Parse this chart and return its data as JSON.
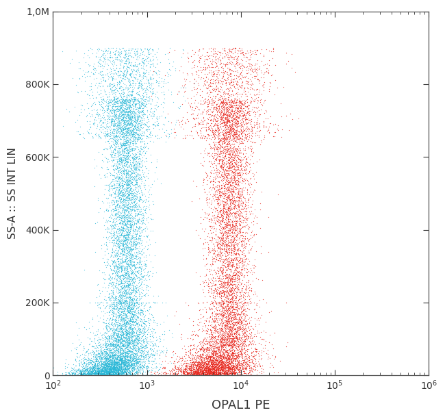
{
  "xlabel": "OPAL1 PE",
  "ylabel": "SS-A :: SS INT LIN",
  "xlim_log": [
    100,
    1000000
  ],
  "ylim": [
    0,
    1000000
  ],
  "yticks": [
    0,
    200000,
    400000,
    600000,
    800000,
    1000000
  ],
  "ytick_labels": [
    "0",
    "200K",
    "400K",
    "600K",
    "800K",
    "1,0M"
  ],
  "background_color": "#ffffff",
  "cyan_color": "#29b8d8",
  "red_color": "#e8281e",
  "n_cyan": 12000,
  "n_red": 10000,
  "cyan_x_log_center": 2.78,
  "cyan_x_log_tight": 0.1,
  "red_x_log_center": 3.88,
  "red_x_log_tight": 0.11
}
